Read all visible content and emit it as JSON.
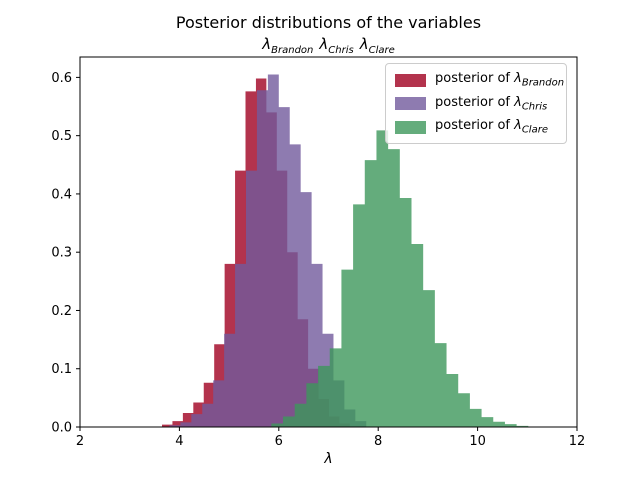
{
  "chart_data": {
    "type": "histogram",
    "title": "Posterior distributions of the variables",
    "lambda_symbol": "λ",
    "subtitle_variables": [
      "Brandon",
      "Chris",
      "Clare"
    ],
    "xlabel": "λ",
    "xlim": [
      2,
      12
    ],
    "ylim": [
      0,
      0.635
    ],
    "xticks": [
      2,
      4,
      6,
      8,
      10,
      12
    ],
    "ytick_values": [
      0,
      0.1,
      0.2,
      0.3,
      0.4,
      0.5,
      0.6
    ],
    "ytick_labels": [
      "0.0",
      "0.1",
      "0.2",
      "0.3",
      "0.4",
      "0.5",
      "0.6"
    ],
    "grid": false,
    "legend_position": "upper right",
    "legend_prefix": "posterior of ",
    "background_color": "#ffffff",
    "axis_color": "#000000",
    "series": [
      {
        "name": "Brandon",
        "legend_label": "posterior of λ_Brandon",
        "color": "#A00021",
        "alpha": 0.8,
        "bin_start": 3.65,
        "bin_width": 0.21,
        "heights": [
          0.004,
          0.01,
          0.024,
          0.042,
          0.076,
          0.142,
          0.28,
          0.44,
          0.576,
          0.598,
          0.54,
          0.44,
          0.3,
          0.185,
          0.1,
          0.048,
          0.018,
          0.006
        ]
      },
      {
        "name": "Chris",
        "legend_label": "posterior of λ_Chris",
        "color": "#725A9C",
        "alpha": 0.8,
        "bin_start": 3.8,
        "bin_width": 0.22,
        "heights": [
          0.003,
          0.008,
          0.022,
          0.04,
          0.08,
          0.16,
          0.28,
          0.44,
          0.578,
          0.605,
          0.549,
          0.485,
          0.403,
          0.28,
          0.16,
          0.08,
          0.03,
          0.01
        ]
      },
      {
        "name": "Clare",
        "legend_label": "posterior of λ_Clare",
        "color": "#3D975B",
        "alpha": 0.8,
        "bin_start": 5.85,
        "bin_width": 0.235,
        "heights": [
          0.006,
          0.018,
          0.04,
          0.075,
          0.105,
          0.135,
          0.27,
          0.382,
          0.458,
          0.509,
          0.477,
          0.393,
          0.314,
          0.235,
          0.144,
          0.091,
          0.058,
          0.031,
          0.017,
          0.009,
          0.005,
          0.002
        ]
      }
    ]
  }
}
